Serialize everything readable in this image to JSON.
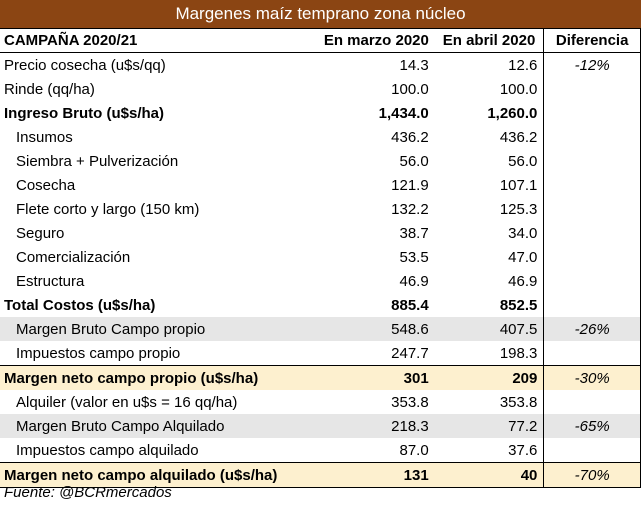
{
  "title": "Margenes maíz temprano zona núcleo",
  "header": {
    "label": "CAMPAÑA 2020/21",
    "col1": "En marzo 2020",
    "col2": "En abril 2020",
    "col3": "Diferencia"
  },
  "rows": [
    {
      "label": "Precio cosecha (u$s/qq)",
      "v1": "14.3",
      "v2": "12.6",
      "diff": "-12%",
      "style": "plain"
    },
    {
      "label": "Rinde (qq/ha)",
      "v1": "100.0",
      "v2": "100.0",
      "diff": "",
      "style": "plain"
    },
    {
      "label": "Ingreso Bruto (u$s/ha)",
      "v1": "1,434.0",
      "v2": "1,260.0",
      "diff": "",
      "style": "bold"
    },
    {
      "label": "Insumos",
      "v1": "436.2",
      "v2": "436.2",
      "diff": "",
      "style": "sub"
    },
    {
      "label": "Siembra + Pulverización",
      "v1": "56.0",
      "v2": "56.0",
      "diff": "",
      "style": "sub"
    },
    {
      "label": "Cosecha",
      "v1": "121.9",
      "v2": "107.1",
      "diff": "",
      "style": "sub"
    },
    {
      "label": "Flete corto y largo (150 km)",
      "v1": "132.2",
      "v2": "125.3",
      "diff": "",
      "style": "sub"
    },
    {
      "label": "Seguro",
      "v1": "38.7",
      "v2": "34.0",
      "diff": "",
      "style": "sub"
    },
    {
      "label": "Comercialización",
      "v1": "53.5",
      "v2": "47.0",
      "diff": "",
      "style": "sub"
    },
    {
      "label": "Estructura",
      "v1": "46.9",
      "v2": "46.9",
      "diff": "",
      "style": "sub"
    },
    {
      "label": "Total Costos (u$s/ha)",
      "v1": "885.4",
      "v2": "852.5",
      "diff": "",
      "style": "bold"
    },
    {
      "label": "Margen Bruto Campo propio",
      "v1": "548.6",
      "v2": "407.5",
      "diff": "-26%",
      "style": "sub gray"
    },
    {
      "label": "Impuestos  campo propio",
      "v1": "247.7",
      "v2": "198.3",
      "diff": "",
      "style": "sub"
    },
    {
      "label": "Margen neto campo propio (u$s/ha)",
      "v1": "301",
      "v2": "209",
      "diff": "-30%",
      "style": "bold cream"
    },
    {
      "label": "Alquiler (valor en u$s = 16 qq/ha)",
      "v1": "353.8",
      "v2": "353.8",
      "diff": "",
      "style": "sub"
    },
    {
      "label": "Margen Bruto Campo Alquilado",
      "v1": "218.3",
      "v2": "77.2",
      "diff": "-65%",
      "style": "sub gray"
    },
    {
      "label": "Impuestos campo alquilado",
      "v1": "87.0",
      "v2": "37.6",
      "diff": "",
      "style": "sub"
    },
    {
      "label": "Margen neto campo alquilado (u$s/ha)",
      "v1": "131",
      "v2": "40",
      "diff": "-70%",
      "style": "bold cream"
    }
  ],
  "source": "Fuente: @BCRmercados",
  "colors": {
    "title_bg": "#8b4513",
    "highlight_gray": "#e6e6e6",
    "highlight_cream": "#fdf0cf"
  }
}
